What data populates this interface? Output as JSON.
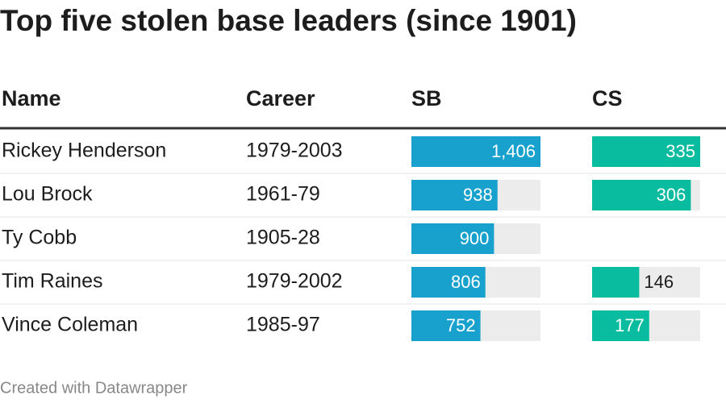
{
  "title": "Top five stolen base leaders (since 1901)",
  "table": {
    "headers": [
      "Name",
      "Career",
      "SB",
      "CS"
    ],
    "names": [
      "Rickey Henderson",
      "Lou Brock",
      "Ty Cobb",
      "Tim Raines",
      "Vince Coleman"
    ],
    "careers": [
      "1979-2003",
      "1961-79",
      "1905-28",
      "1979-2002",
      "1985-97"
    ],
    "sb": {
      "color": "#18a1cd",
      "values": [
        1406,
        938,
        900,
        806,
        752
      ],
      "value_labels": [
        "1,406",
        "938",
        "900",
        "806",
        "752"
      ]
    },
    "cs": {
      "color": "#09bb9f",
      "values": [
        335,
        306,
        null,
        146,
        177
      ],
      "value_labels": [
        "335",
        "306",
        null,
        "146",
        "177"
      ]
    }
  },
  "footer": "Created with Datawrapper"
}
